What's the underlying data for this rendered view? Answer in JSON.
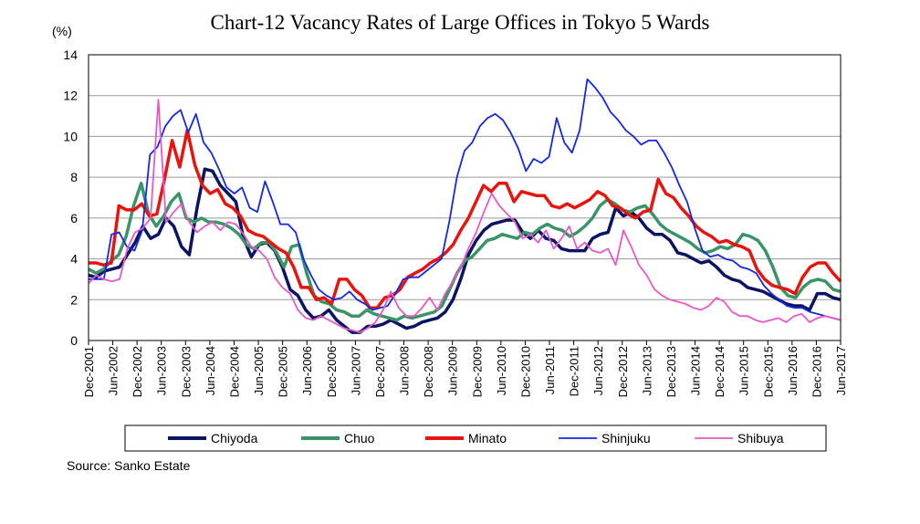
{
  "chart_data": {
    "type": "line",
    "title": "Chart-12 Vacancy Rates of Large Offices in Tokyo 5 Wards",
    "y_unit": "(%)",
    "ylim": [
      0,
      14
    ],
    "y_ticks": [
      "0",
      "2",
      "4",
      "6",
      "8",
      "10",
      "12",
      "14"
    ],
    "x_tick_labels": [
      "Dec-2001",
      "Jun-2002",
      "Dec-2002",
      "Jun-2003",
      "Dec-2003",
      "Jun-2004",
      "Dec-2004",
      "Jun-2005",
      "Dec-2005",
      "Jun-2006",
      "Dec-2006",
      "Jun-2007",
      "Dec-2007",
      "Jun-2008",
      "Dec-2008",
      "Jun-2009",
      "Dec-2009",
      "Jun-2010",
      "Dec-2010",
      "Jun-2011",
      "Dec-2011",
      "Jun-2012",
      "Dec-2012",
      "Jun-2013",
      "Dec-2013",
      "Jun-2014",
      "Dec-2014",
      "Jun-2015",
      "Dec-2015",
      "Jun-2016",
      "Dec-2016",
      "Jun-2017"
    ],
    "grid": true,
    "legend_position": "bottom",
    "source": "Source: Sanko Estate",
    "series": [
      {
        "name": "Chiyoda",
        "color": "#0a1464",
        "values": [
          3.2,
          3.1,
          3.4,
          3.5,
          3.6,
          4.2,
          4.8,
          5.6,
          5.0,
          5.2,
          6.0,
          5.6,
          4.6,
          4.2,
          6.5,
          8.4,
          8.3,
          7.6,
          7.2,
          6.8,
          5.0,
          4.1,
          4.7,
          4.8,
          4.4,
          3.6,
          2.5,
          2.2,
          1.5,
          1.1,
          1.2,
          1.5,
          1.0,
          0.7,
          0.4,
          0.4,
          0.7,
          0.7,
          0.8,
          1.0,
          0.8,
          0.6,
          0.7,
          0.9,
          1.0,
          1.1,
          1.4,
          2.0,
          3.0,
          4.2,
          4.9,
          5.4,
          5.7,
          5.8,
          5.9,
          5.9,
          5.3,
          5.0,
          5.4,
          5.0,
          4.9,
          4.5,
          4.4,
          4.4,
          4.4,
          5.0,
          5.2,
          5.3,
          6.5,
          6.1,
          6.3,
          6.0,
          5.5,
          5.2,
          5.2,
          4.9,
          4.3,
          4.2,
          4.0,
          3.8,
          3.9,
          3.6,
          3.2,
          3.0,
          2.9,
          2.6,
          2.5,
          2.4,
          2.2,
          2.0,
          1.8,
          1.7,
          1.7,
          1.5,
          2.3,
          2.3,
          2.1,
          2.0
        ]
      },
      {
        "name": "Chuo",
        "color": "#3a9468",
        "values": [
          3.5,
          3.3,
          3.5,
          3.9,
          4.2,
          5.1,
          6.6,
          7.7,
          6.2,
          5.6,
          6.1,
          6.8,
          7.2,
          6.0,
          5.8,
          6.0,
          5.8,
          5.8,
          5.7,
          5.5,
          5.2,
          4.7,
          4.5,
          4.8,
          4.8,
          4.3,
          3.6,
          4.6,
          4.7,
          3.3,
          2.2,
          1.9,
          1.8,
          1.5,
          1.4,
          1.2,
          1.2,
          1.5,
          1.3,
          1.2,
          1.1,
          1.0,
          1.2,
          1.1,
          1.2,
          1.3,
          1.4,
          1.7,
          2.5,
          3.3,
          3.9,
          4.1,
          4.5,
          4.9,
          5.0,
          5.2,
          5.1,
          5.0,
          5.3,
          5.2,
          5.5,
          5.7,
          5.5,
          5.4,
          5.1,
          5.3,
          5.6,
          6.0,
          6.6,
          6.9,
          6.7,
          6.4,
          6.3,
          6.5,
          6.6,
          6.2,
          5.7,
          5.4,
          5.2,
          5.0,
          4.8,
          4.5,
          4.3,
          4.4,
          4.6,
          4.5,
          4.7,
          5.2,
          5.1,
          4.9,
          4.4,
          3.6,
          2.6,
          2.2,
          2.1,
          2.6,
          2.9,
          3.0,
          2.9,
          2.5,
          2.4
        ]
      },
      {
        "name": "Minato",
        "color": "#e8140e",
        "values": [
          3.8,
          3.8,
          3.7,
          3.8,
          6.6,
          6.4,
          6.4,
          6.7,
          6.1,
          6.2,
          7.9,
          9.8,
          8.5,
          10.3,
          8.6,
          7.6,
          7.2,
          7.4,
          6.7,
          6.5,
          6.1,
          5.4,
          5.2,
          5.1,
          4.8,
          4.5,
          4.3,
          3.6,
          2.6,
          2.6,
          2.0,
          2.1,
          1.8,
          3.0,
          3.0,
          2.5,
          2.2,
          1.6,
          1.6,
          2.1,
          2.2,
          2.5,
          3.1,
          3.3,
          3.5,
          3.8,
          4.0,
          4.3,
          4.7,
          5.4,
          6.0,
          6.8,
          7.6,
          7.3,
          7.7,
          7.7,
          6.8,
          7.3,
          7.2,
          7.1,
          7.1,
          6.6,
          6.5,
          6.7,
          6.5,
          6.7,
          6.9,
          7.3,
          7.1,
          6.6,
          6.5,
          6.2,
          6.0,
          6.3,
          6.4,
          7.9,
          7.2,
          7.0,
          6.5,
          6.1,
          5.6,
          5.3,
          5.1,
          4.8,
          4.9,
          4.7,
          4.6,
          4.4,
          3.5,
          3.0,
          2.7,
          2.6,
          2.5,
          2.3,
          3.1,
          3.6,
          3.8,
          3.8,
          3.3,
          2.9
        ]
      },
      {
        "name": "Shinjuku",
        "color": "#1428e6",
        "values": [
          3.0,
          3.0,
          3.0,
          5.2,
          5.3,
          4.6,
          4.4,
          5.4,
          9.1,
          9.5,
          10.5,
          11.0,
          11.3,
          10.2,
          11.1,
          9.7,
          9.2,
          8.4,
          7.5,
          7.2,
          7.5,
          6.5,
          6.3,
          7.8,
          6.8,
          5.7,
          5.7,
          5.3,
          4.0,
          3.2,
          2.5,
          2.2,
          2.0,
          2.1,
          2.4,
          2.0,
          1.8,
          1.5,
          1.6,
          1.7,
          2.3,
          3.0,
          3.1,
          3.1,
          3.4,
          3.7,
          4.0,
          5.8,
          8.0,
          9.3,
          9.7,
          10.5,
          10.9,
          11.1,
          10.8,
          10.2,
          9.4,
          8.3,
          8.9,
          8.7,
          9.0,
          10.9,
          9.7,
          9.2,
          10.3,
          12.8,
          12.4,
          11.9,
          11.2,
          10.8,
          10.3,
          10.0,
          9.6,
          9.8,
          9.8,
          9.2,
          8.5,
          7.6,
          6.8,
          5.5,
          4.4,
          4.1,
          4.2,
          4.0,
          3.9,
          3.6,
          3.5,
          3.3,
          2.7,
          2.3,
          2.0,
          1.7,
          1.6,
          1.6,
          1.4,
          1.3,
          1.2,
          1.1,
          1.0
        ]
      },
      {
        "name": "Shibuya",
        "color": "#e858c8",
        "values": [
          2.8,
          3.2,
          3.0,
          2.9,
          3.0,
          4.5,
          5.3,
          5.5,
          6.0,
          11.8,
          5.8,
          6.3,
          6.7,
          5.8,
          5.3,
          5.6,
          5.8,
          5.4,
          5.8,
          5.7,
          5.2,
          4.6,
          4.4,
          4.0,
          3.1,
          2.6,
          2.3,
          1.5,
          1.1,
          1.0,
          1.2,
          1.0,
          0.8,
          0.6,
          0.5,
          0.4,
          0.6,
          0.9,
          1.5,
          2.4,
          1.6,
          1.2,
          1.2,
          1.6,
          2.1,
          1.5,
          2.3,
          2.9,
          3.6,
          4.5,
          5.3,
          6.3,
          7.2,
          6.6,
          6.2,
          5.8,
          5.0,
          5.2,
          4.8,
          5.4,
          4.5,
          5.0,
          5.6,
          4.5,
          4.8,
          4.4,
          4.3,
          4.5,
          3.7,
          5.4,
          4.6,
          3.7,
          3.2,
          2.5,
          2.2,
          2.0,
          1.9,
          1.8,
          1.6,
          1.5,
          1.7,
          2.1,
          1.9,
          1.4,
          1.2,
          1.2,
          1.0,
          0.9,
          1.0,
          1.1,
          0.9,
          1.2,
          1.3,
          0.9,
          1.1,
          1.2,
          1.1,
          1.0
        ]
      }
    ]
  }
}
